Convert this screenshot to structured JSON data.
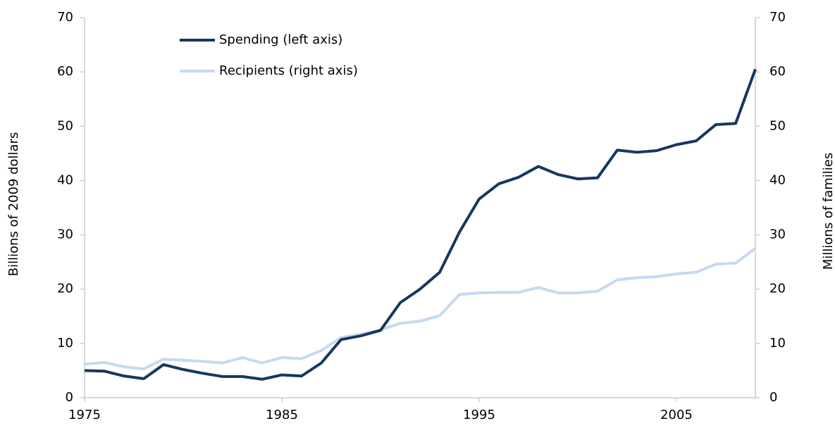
{
  "chart_data": {
    "type": "line",
    "x": [
      1975,
      1976,
      1977,
      1978,
      1979,
      1980,
      1981,
      1982,
      1983,
      1984,
      1985,
      1986,
      1987,
      1988,
      1989,
      1990,
      1991,
      1992,
      1993,
      1994,
      1995,
      1996,
      1997,
      1998,
      1999,
      2000,
      2001,
      2002,
      2003,
      2004,
      2005,
      2006,
      2007,
      2008,
      2009
    ],
    "xlim": [
      1975,
      2009
    ],
    "xticks": [
      1975,
      1985,
      1995,
      2005
    ],
    "ylim": [
      0,
      70
    ],
    "yticks": [
      0,
      10,
      20,
      30,
      40,
      50,
      60,
      70
    ],
    "y2lim": [
      0,
      70
    ],
    "y2ticks": [
      0,
      10,
      20,
      30,
      40,
      50,
      60,
      70
    ],
    "ylabel": "Billions of 2009 dollars",
    "y2label": "Millions of families",
    "legend": "upper left",
    "grid": false,
    "series": [
      {
        "name": "Spending (left axis)",
        "color": "#17375e",
        "axis": "y",
        "values": [
          5.0,
          4.9,
          4.0,
          3.5,
          6.1,
          5.2,
          4.5,
          3.9,
          3.9,
          3.4,
          4.2,
          4.0,
          6.4,
          10.7,
          11.4,
          12.4,
          17.5,
          20.0,
          23.1,
          30.5,
          36.6,
          39.4,
          40.6,
          42.6,
          41.1,
          40.3,
          40.5,
          45.6,
          45.2,
          45.5,
          46.6,
          47.3,
          50.3,
          50.5,
          60.5
        ]
      },
      {
        "name": "Recipients (right axis)",
        "color": "#c6d9f1",
        "axis": "y2",
        "values": [
          6.2,
          6.5,
          5.7,
          5.3,
          7.1,
          6.9,
          6.7,
          6.4,
          7.4,
          6.4,
          7.4,
          7.2,
          8.7,
          11.1,
          11.7,
          12.5,
          13.7,
          14.1,
          15.1,
          19.0,
          19.3,
          19.4,
          19.4,
          20.3,
          19.3,
          19.3,
          19.6,
          21.7,
          22.1,
          22.3,
          22.8,
          23.1,
          24.6,
          24.8,
          27.5
        ]
      }
    ]
  }
}
